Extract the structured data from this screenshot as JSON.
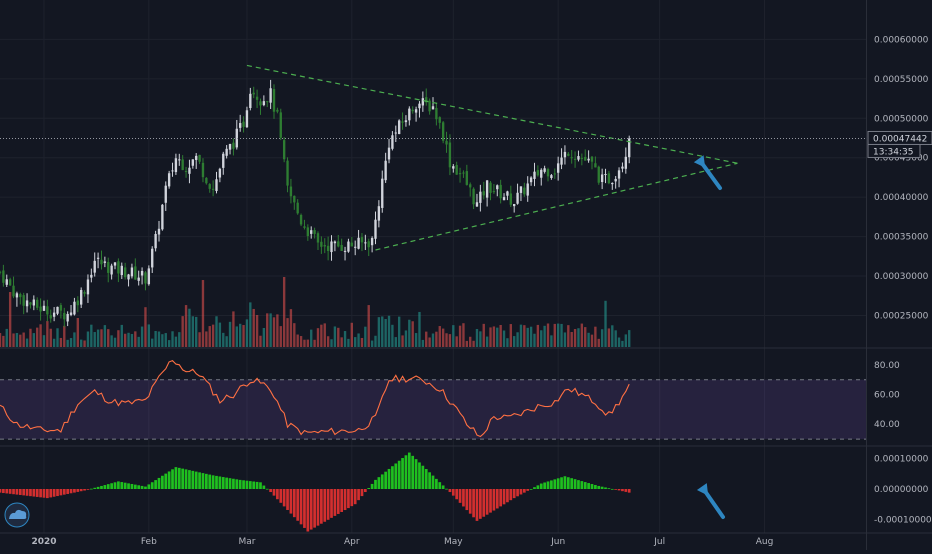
{
  "chart_data": [
    {
      "type": "candlestick",
      "panel": "price",
      "ylim": [
        0.00021,
        0.00065
      ],
      "y_ticks": [
        "0.00025000",
        "0.00030000",
        "0.00035000",
        "0.00040000",
        "0.00045000",
        "0.00050000",
        "0.00055000",
        "0.00060000"
      ],
      "y_tick_values": [
        0.00025,
        0.0003,
        0.00035,
        0.0004,
        0.00045,
        0.0005,
        0.00055,
        0.0006
      ],
      "last_price_label": "0.00047442",
      "last_price": 0.00047442,
      "countdown_label": "13:34:35",
      "close_series_anchors": [
        [
          "2019-12-19",
          0.000305
        ],
        [
          "2019-12-24",
          0.000275
        ],
        [
          "2019-12-29",
          0.000262
        ],
        [
          "2020-01-03",
          0.000255
        ],
        [
          "2020-01-08",
          0.000252
        ],
        [
          "2020-01-13",
          0.000285
        ],
        [
          "2020-01-16",
          0.00032
        ],
        [
          "2020-01-21",
          0.00031
        ],
        [
          "2020-01-26",
          0.000305
        ],
        [
          "2020-01-31",
          0.000298
        ],
        [
          "2020-02-03",
          0.000345
        ],
        [
          "2020-02-06",
          0.00041
        ],
        [
          "2020-02-09",
          0.00045
        ],
        [
          "2020-02-12",
          0.00044
        ],
        [
          "2020-02-15",
          0.00045
        ],
        [
          "2020-02-18",
          0.000425
        ],
        [
          "2020-02-20",
          0.00041
        ],
        [
          "2020-02-23",
          0.00045
        ],
        [
          "2020-02-26",
          0.00047
        ],
        [
          "2020-02-29",
          0.000495
        ],
        [
          "2020-03-02",
          0.00054
        ],
        [
          "2020-03-05",
          0.000525
        ],
        [
          "2020-03-08",
          0.00053
        ],
        [
          "2020-03-10",
          0.0005
        ],
        [
          "2020-03-13",
          0.00041
        ],
        [
          "2020-03-17",
          0.00037
        ],
        [
          "2020-03-22",
          0.00034
        ],
        [
          "2020-03-28",
          0.000338
        ],
        [
          "2020-04-03",
          0.00034
        ],
        [
          "2020-04-07",
          0.000345
        ],
        [
          "2020-04-10",
          0.00042
        ],
        [
          "2020-04-12",
          0.00047
        ],
        [
          "2020-04-16",
          0.000495
        ],
        [
          "2020-04-20",
          0.00052
        ],
        [
          "2020-04-25",
          0.000515
        ],
        [
          "2020-04-28",
          0.00048
        ],
        [
          "2020-04-30",
          0.000445
        ],
        [
          "2020-05-04",
          0.000425
        ],
        [
          "2020-05-08",
          0.00039
        ],
        [
          "2020-05-11",
          0.000415
        ],
        [
          "2020-05-15",
          0.000405
        ],
        [
          "2020-05-19",
          0.000395
        ],
        [
          "2020-05-23",
          0.000415
        ],
        [
          "2020-05-27",
          0.000435
        ],
        [
          "2020-05-31",
          0.000435
        ],
        [
          "2020-06-04",
          0.00046
        ],
        [
          "2020-06-08",
          0.00045
        ],
        [
          "2020-06-11",
          0.00044
        ],
        [
          "2020-06-14",
          0.00042
        ],
        [
          "2020-06-17",
          0.000425
        ],
        [
          "2020-06-20",
          0.000445
        ],
        [
          "2020-06-22",
          0.000474
        ]
      ],
      "trendlines": [
        {
          "points": [
            [
              "2020-03-01",
              0.000567
            ],
            [
              "2020-07-24",
              0.000443
            ]
          ],
          "color": "#4caf50",
          "style": "dashed"
        },
        {
          "points": [
            [
              "2020-04-08",
              0.000333
            ],
            [
              "2020-07-24",
              0.000443
            ]
          ],
          "color": "#4caf50",
          "style": "dashed"
        }
      ]
    },
    {
      "type": "bar",
      "panel": "volume",
      "note_colors": {
        "up": "#26a69a",
        "down": "#ef5350"
      }
    },
    {
      "type": "line",
      "panel": "rsi",
      "ylim": [
        26,
        90
      ],
      "y_ticks": [
        "80.00",
        "60.00",
        "40.00"
      ],
      "y_tick_values": [
        80,
        60,
        40
      ],
      "band": [
        30,
        70
      ],
      "color": "#ff7043",
      "series_anchors": [
        [
          "2019-12-19",
          52
        ],
        [
          "2019-12-24",
          40
        ],
        [
          "2019-12-31",
          36
        ],
        [
          "2020-01-06",
          36
        ],
        [
          "2020-01-11",
          54
        ],
        [
          "2020-01-16",
          62
        ],
        [
          "2020-01-21",
          55
        ],
        [
          "2020-01-26",
          54
        ],
        [
          "2020-01-31",
          56
        ],
        [
          "2020-02-04",
          71
        ],
        [
          "2020-02-08",
          84
        ],
        [
          "2020-02-12",
          76
        ],
        [
          "2020-02-16",
          74
        ],
        [
          "2020-02-20",
          62
        ],
        [
          "2020-02-22",
          56
        ],
        [
          "2020-02-26",
          60
        ],
        [
          "2020-03-02",
          70
        ],
        [
          "2020-03-06",
          67
        ],
        [
          "2020-03-09",
          60
        ],
        [
          "2020-03-13",
          40
        ],
        [
          "2020-03-18",
          34
        ],
        [
          "2020-03-25",
          35
        ],
        [
          "2020-04-03",
          36
        ],
        [
          "2020-04-08",
          44
        ],
        [
          "2020-04-12",
          70
        ],
        [
          "2020-04-16",
          71
        ],
        [
          "2020-04-22",
          70
        ],
        [
          "2020-04-27",
          64
        ],
        [
          "2020-05-01",
          53
        ],
        [
          "2020-05-05",
          40
        ],
        [
          "2020-05-09",
          31
        ],
        [
          "2020-05-13",
          45
        ],
        [
          "2020-05-17",
          44
        ],
        [
          "2020-05-22",
          48
        ],
        [
          "2020-05-26",
          52
        ],
        [
          "2020-05-31",
          55
        ],
        [
          "2020-06-04",
          64
        ],
        [
          "2020-06-08",
          60
        ],
        [
          "2020-06-12",
          55
        ],
        [
          "2020-06-16",
          46
        ],
        [
          "2020-06-19",
          55
        ],
        [
          "2020-06-22",
          65
        ]
      ]
    },
    {
      "type": "histogram",
      "panel": "oscillator",
      "ylim": [
        -0.000135,
        0.000135
      ],
      "y_ticks": [
        "0.00010000",
        "0.00000000",
        "-0.00010000"
      ],
      "y_tick_values": [
        0.0001,
        0,
        -0.0001
      ],
      "colors": {
        "positive": "#1fc01f",
        "negative": "#d32f2f"
      },
      "series_anchors": [
        [
          "2019-12-19",
          -1.2e-05
        ],
        [
          "2020-01-02",
          -3e-05
        ],
        [
          "2020-01-13",
          -5e-06
        ],
        [
          "2020-01-23",
          2.5e-05
        ],
        [
          "2020-01-31",
          8e-06
        ],
        [
          "2020-02-09",
          7.2e-05
        ],
        [
          "2020-02-20",
          4.5e-05
        ],
        [
          "2020-02-28",
          3e-05
        ],
        [
          "2020-03-05",
          2.2e-05
        ],
        [
          "2020-03-08",
          -1e-05
        ],
        [
          "2020-03-19",
          -0.00014
        ],
        [
          "2020-04-02",
          -5e-05
        ],
        [
          "2020-04-08",
          3e-05
        ],
        [
          "2020-04-18",
          0.00012
        ],
        [
          "2020-04-30",
          -1e-05
        ],
        [
          "2020-05-08",
          -0.000105
        ],
        [
          "2020-05-19",
          -3e-05
        ],
        [
          "2020-05-27",
          1.8e-05
        ],
        [
          "2020-06-03",
          4.2e-05
        ],
        [
          "2020-06-13",
          1e-05
        ],
        [
          "2020-06-22",
          -1.2e-05
        ]
      ]
    }
  ],
  "x_axis": {
    "labels": [
      {
        "text": "2020",
        "date": "2020-01-01"
      },
      {
        "text": "Feb",
        "date": "2020-02-01"
      },
      {
        "text": "Mar",
        "date": "2020-03-01"
      },
      {
        "text": "Apr",
        "date": "2020-04-01"
      },
      {
        "text": "May",
        "date": "2020-05-01"
      },
      {
        "text": "Jun",
        "date": "2020-06-01"
      },
      {
        "text": "Jul",
        "date": "2020-07-01"
      },
      {
        "text": "Aug",
        "date": "2020-08-01"
      }
    ],
    "range": [
      "2019-12-19",
      "2020-08-31"
    ]
  },
  "colors": {
    "background": "#131722",
    "grid": "#1e222d",
    "up_candle": "#d1d4dc",
    "down_candle": "#2e7d32",
    "arrow": "#2e86c1"
  },
  "icons": {
    "logo": "tradingview-cloud-icon"
  }
}
